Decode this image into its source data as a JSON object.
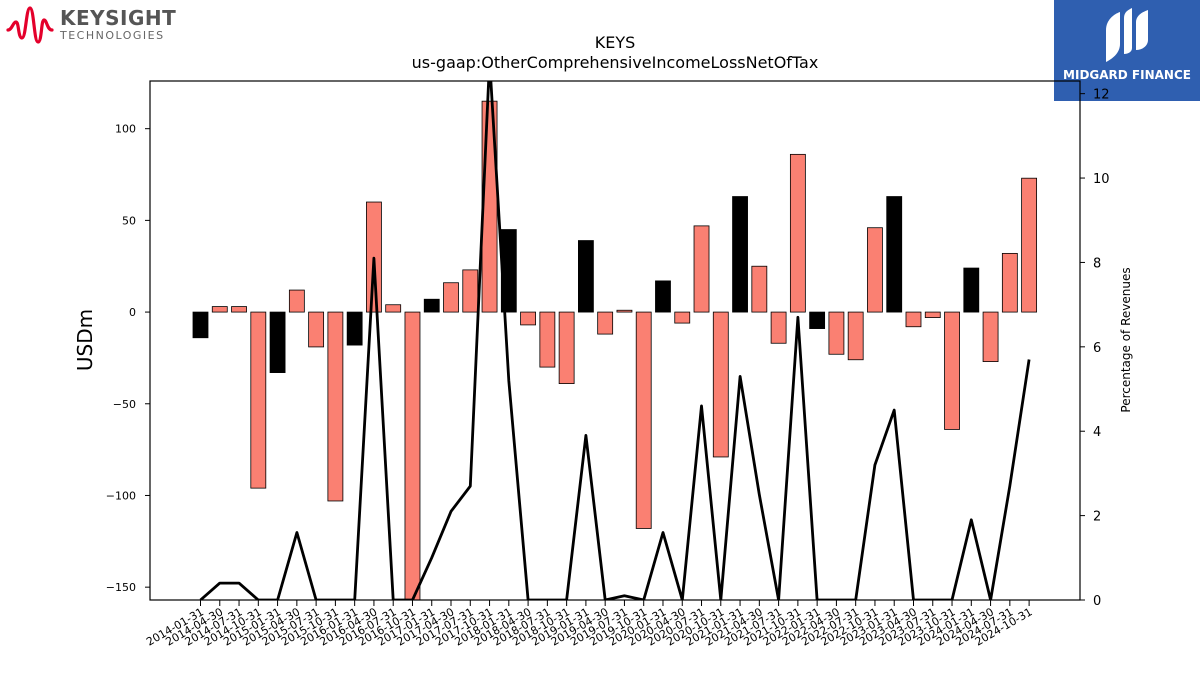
{
  "branding": {
    "left_logo_name": "KEYSIGHT",
    "left_logo_sub": "TECHNOLOGIES",
    "right_logo_name": "MIDGARD FINANCE"
  },
  "chart_data": {
    "type": "bar",
    "title": "KEYS",
    "subtitle": "us-gaap:OtherComprehensiveIncomeLossNetOfTax",
    "ylabel": "USDm",
    "y2label": "Percentage of Revenues",
    "ylim": [
      -157,
      126
    ],
    "y2lim": [
      0,
      12.3
    ],
    "yticks": [
      -150,
      -100,
      -50,
      0,
      50,
      100
    ],
    "y2ticks": [
      0,
      2,
      4,
      6,
      8,
      10,
      12
    ],
    "colors": {
      "positive": "#fa8072",
      "negative": "#fa8072",
      "black": "#000000",
      "line": "#000000"
    },
    "categories": [
      "2014-01-31",
      "2014-04-30",
      "2014-07-31",
      "2014-10-31",
      "2015-01-31",
      "2015-04-30",
      "2015-07-31",
      "2015-10-31",
      "2016-01-31",
      "2016-04-30",
      "2016-07-31",
      "2016-10-31",
      "2017-01-31",
      "2017-04-30",
      "2017-07-31",
      "2017-10-31",
      "2018-01-31",
      "2018-04-30",
      "2018-07-31",
      "2018-10-31",
      "2019-01-31",
      "2019-04-30",
      "2019-07-31",
      "2019-10-31",
      "2020-01-31",
      "2020-04-30",
      "2020-07-31",
      "2020-10-31",
      "2021-01-31",
      "2021-04-30",
      "2021-07-31",
      "2021-10-31",
      "2022-01-31",
      "2022-04-30",
      "2022-07-31",
      "2022-10-31",
      "2023-01-31",
      "2023-04-30",
      "2023-07-31",
      "2023-10-31",
      "2024-01-31",
      "2024-04-30",
      "2024-07-31",
      "2024-10-31"
    ],
    "series": [
      {
        "type": "bar",
        "values": [
          -14,
          3,
          3,
          -96,
          -33,
          12,
          -19,
          -103,
          -18,
          60,
          4,
          -160,
          7,
          16,
          23,
          115,
          45,
          -7,
          -30,
          -39,
          39,
          -12,
          1,
          -118,
          17,
          -6,
          47,
          -79,
          63,
          25,
          -17,
          86,
          -9,
          -23,
          -26,
          46,
          63,
          -8,
          -3,
          -64,
          24,
          -27,
          32,
          73
        ],
        "bar_colors": [
          "black",
          "salmon",
          "salmon",
          "salmon",
          "black",
          "salmon",
          "salmon",
          "salmon",
          "black",
          "salmon",
          "salmon",
          "salmon",
          "black",
          "salmon",
          "salmon",
          "salmon",
          "black",
          "salmon",
          "salmon",
          "salmon",
          "black",
          "salmon",
          "salmon",
          "salmon",
          "black",
          "salmon",
          "salmon",
          "salmon",
          "black",
          "salmon",
          "salmon",
          "salmon",
          "black",
          "salmon",
          "salmon",
          "salmon",
          "black",
          "salmon",
          "salmon",
          "salmon",
          "black",
          "salmon",
          "salmon",
          "salmon"
        ]
      },
      {
        "type": "line",
        "axis": "right",
        "values": [
          0,
          0.4,
          0.4,
          0,
          0,
          1.6,
          0,
          0,
          0,
          8.1,
          0,
          0,
          1.0,
          2.1,
          2.7,
          12.8,
          5.2,
          0,
          0,
          0,
          3.9,
          0,
          0.1,
          0,
          1.6,
          0,
          4.6,
          0,
          5.3,
          2.5,
          0,
          6.7,
          0,
          0,
          0,
          3.2,
          4.5,
          0,
          0,
          0,
          1.9,
          0,
          2.7,
          5.7
        ]
      }
    ],
    "grid": false
  }
}
